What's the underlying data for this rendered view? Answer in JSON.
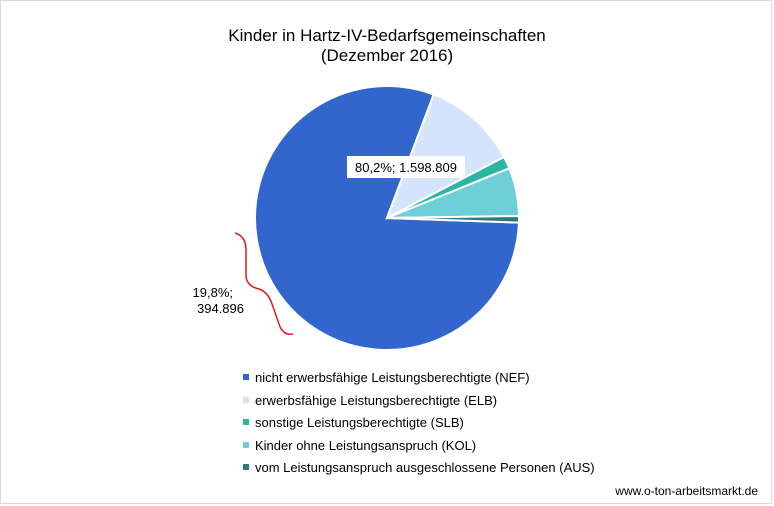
{
  "chart_data": {
    "type": "pie",
    "title": "Kinder in Hartz-IV-Bedarfsgemeinschaften",
    "subtitle": "(Dezember 2016)",
    "categories": [
      "nicht erwerbsfähige Leistungsberechtigte (NEF)",
      "erwerbsfähige Leistungsberechtigte (ELB)",
      "sonstige Leistungsberechtigte (SLB)",
      "Kinder ohne Leistungsanspruch (KOL)",
      "vom Leistungsanspruch ausgeschlossene Personen (AUS)"
    ],
    "values": [
      80.2,
      11.6,
      1.5,
      5.9,
      0.8
    ],
    "colors": [
      "#3366CC",
      "#D6E4FB",
      "#2BB5A3",
      "#6FCFD8",
      "#2A7C7C"
    ],
    "legend_position": "bottom",
    "annotations": {
      "main_label": "80,2%; 1.598.809",
      "group_label_line1": "19,8%;",
      "group_label_line2": "394.896"
    }
  },
  "source": "www.o-ton-arbeitsmarkt.de"
}
